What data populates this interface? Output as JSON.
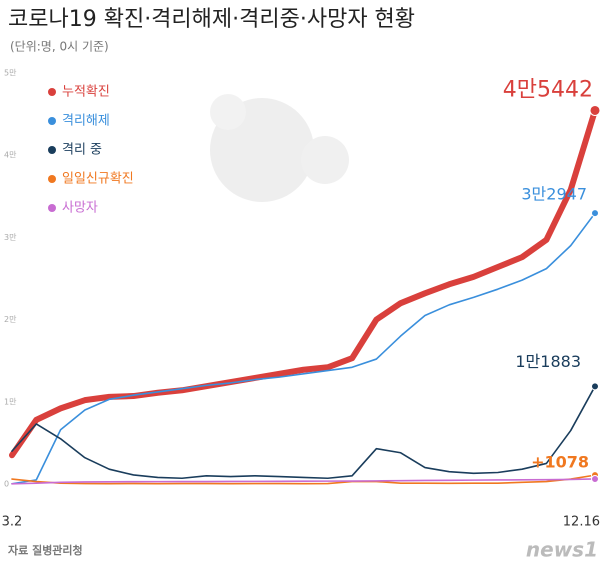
{
  "chart_data": {
    "type": "line",
    "title": "코로나19 확진·격리해제·격리중·사망자 현황",
    "subtitle": "(단위:명, 0시 기준)",
    "categories": [
      "3.2",
      null,
      null,
      null,
      null,
      null,
      null,
      null,
      null,
      null,
      null,
      null,
      null,
      null,
      null,
      null,
      null,
      null,
      null,
      null,
      null,
      null,
      null,
      null,
      "12.16"
    ],
    "series": [
      {
        "name": "누적확진",
        "color": "#d9403c",
        "values": [
          3500,
          7800,
          9200,
          10200,
          10600,
          10700,
          11100,
          11400,
          11900,
          12400,
          12900,
          13400,
          13900,
          14200,
          15300,
          20000,
          22000,
          23200,
          24300,
          25200,
          26400,
          27600,
          29700,
          35800,
          45442
        ],
        "value_labels": [
          null,
          null,
          null,
          null,
          null,
          null,
          null,
          null,
          null,
          null,
          null,
          null,
          null,
          null,
          null,
          null,
          null,
          null,
          null,
          null,
          null,
          null,
          null,
          null,
          "4만5442"
        ]
      },
      {
        "name": "격리해제",
        "color": "#3a8fdc",
        "values": [
          30,
          500,
          6600,
          9000,
          10300,
          10800,
          11200,
          11600,
          12000,
          12300,
          12700,
          13000,
          13400,
          13800,
          14200,
          15200,
          18000,
          20500,
          21800,
          22700,
          23700,
          24800,
          26200,
          29000,
          32947
        ],
        "value_labels": [
          null,
          null,
          null,
          null,
          null,
          null,
          null,
          null,
          null,
          null,
          null,
          null,
          null,
          null,
          null,
          null,
          null,
          null,
          null,
          null,
          null,
          null,
          null,
          null,
          "3만2947"
        ]
      },
      {
        "name": "격리 중",
        "color": "#1a3d5c",
        "values": [
          4000,
          7300,
          5500,
          3200,
          1800,
          1100,
          800,
          700,
          1000,
          900,
          1000,
          900,
          800,
          700,
          1000,
          4300,
          3800,
          2000,
          1500,
          1300,
          1400,
          1800,
          2500,
          6500,
          11883
        ],
        "value_labels": [
          null,
          null,
          null,
          null,
          null,
          null,
          null,
          null,
          null,
          null,
          null,
          null,
          null,
          null,
          null,
          null,
          null,
          null,
          null,
          null,
          null,
          null,
          null,
          null,
          "1만1883"
        ]
      },
      {
        "name": "일일신규확진",
        "color": "#f07820",
        "values": [
          600,
          300,
          100,
          50,
          40,
          50,
          40,
          50,
          50,
          40,
          50,
          50,
          40,
          50,
          300,
          300,
          100,
          100,
          80,
          100,
          100,
          200,
          300,
          600,
          1078
        ],
        "value_labels": [
          null,
          null,
          null,
          null,
          null,
          null,
          null,
          null,
          null,
          null,
          null,
          null,
          null,
          null,
          null,
          null,
          null,
          null,
          null,
          null,
          null,
          null,
          null,
          null,
          "+1078"
        ]
      },
      {
        "name": "사망자",
        "color": "#c86cd2",
        "values": [
          22,
          100,
          200,
          250,
          270,
          280,
          290,
          300,
          300,
          310,
          320,
          330,
          340,
          350,
          360,
          380,
          400,
          430,
          450,
          470,
          490,
          510,
          530,
          560,
          612
        ]
      }
    ],
    "ylim": [
      0,
      50000
    ],
    "yticks": [
      0,
      {
        "value": 10000,
        "label": "1만"
      },
      {
        "value": 20000,
        "label": "2만"
      },
      {
        "value": 30000,
        "label": "3만"
      },
      {
        "value": 40000,
        "label": "4만"
      },
      {
        "value": 50000,
        "label": "5만"
      }
    ],
    "grid": false,
    "legend": "top-left",
    "source": "자료 질병관리청",
    "logo": "news1"
  }
}
